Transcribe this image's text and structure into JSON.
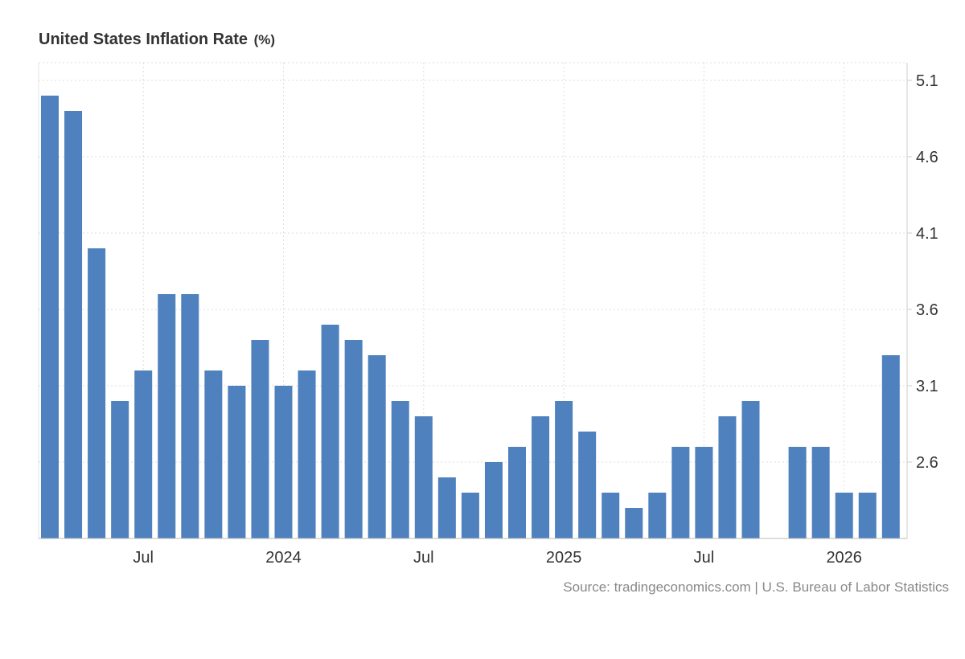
{
  "chart_data": {
    "type": "bar",
    "title": "United States Inflation Rate",
    "unit": "(%)",
    "source": "Source: tradingeconomics.com | U.S. Bureau of Labor Statistics",
    "categories": [
      "2023-03",
      "2023-04",
      "2023-05",
      "2023-06",
      "2023-07",
      "2023-08",
      "2023-09",
      "2023-10",
      "2023-11",
      "2023-12",
      "2024-01",
      "2024-02",
      "2024-03",
      "2024-04",
      "2024-05",
      "2024-06",
      "2024-07",
      "2024-08",
      "2024-09",
      "2024-10",
      "2024-11",
      "2024-12",
      "2025-01",
      "2025-02",
      "2025-03",
      "2025-04",
      "2025-05",
      "2025-06",
      "2025-07",
      "2025-08",
      "2025-09",
      "2025-10",
      "2025-11",
      "2025-12",
      "2026-01",
      "2026-02",
      "2026-03"
    ],
    "values": [
      5.0,
      4.9,
      4.0,
      3.0,
      3.2,
      3.7,
      3.7,
      3.2,
      3.1,
      3.4,
      3.1,
      3.2,
      3.5,
      3.4,
      3.3,
      3.0,
      2.9,
      2.5,
      2.4,
      2.6,
      2.7,
      2.9,
      3.0,
      2.8,
      2.4,
      2.3,
      2.4,
      2.7,
      2.7,
      2.9,
      3.0,
      null,
      2.7,
      2.7,
      2.4,
      2.4,
      3.3
    ],
    "x_tick_labels": [
      {
        "label": "Jul",
        "category": "2023-07"
      },
      {
        "label": "2024",
        "category": "2024-01"
      },
      {
        "label": "Jul",
        "category": "2024-07"
      },
      {
        "label": "2025",
        "category": "2025-01"
      },
      {
        "label": "Jul",
        "category": "2025-07"
      },
      {
        "label": "2026",
        "category": "2026-01"
      }
    ],
    "y_ticks": [
      2.6,
      3.1,
      3.6,
      4.1,
      4.6,
      5.1
    ],
    "ylim": [
      2.1,
      5.2
    ],
    "grid": true,
    "y_axis_side": "right",
    "bar_color": "#4e81bd"
  }
}
